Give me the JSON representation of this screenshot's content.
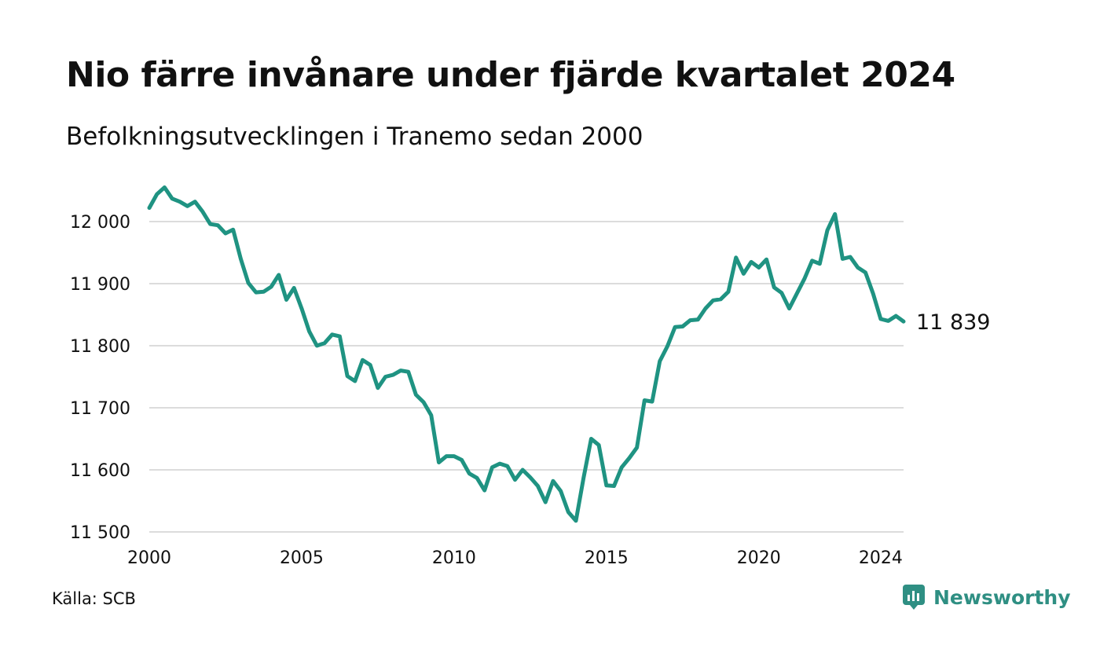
{
  "title": "Nio färre invånare under fjärde kvartalet 2024",
  "subtitle": "Befolkningsutvecklingen i Tranemo sedan 2000",
  "source": "Källa: SCB",
  "brand": {
    "name": "Newsworthy",
    "icon": "newsworthy-logo-icon",
    "color": "#2f8f83"
  },
  "chart_data": {
    "type": "line",
    "title": "Nio färre invånare under fjärde kvartalet 2024",
    "subtitle": "Befolkningsutvecklingen i Tranemo sedan 2000",
    "xlabel": "",
    "ylabel": "",
    "x_ticks": [
      "2000",
      "2005",
      "2010",
      "2015",
      "2020",
      "2024"
    ],
    "y_ticks": [
      "11 500",
      "11 600",
      "11 700",
      "11 800",
      "11 900",
      "12 000"
    ],
    "ylim": [
      11500,
      12040
    ],
    "xlim": [
      "2000-Q1",
      "2024-Q4"
    ],
    "grid": true,
    "line_color": "#1f9382",
    "end_label": "11 839",
    "series": [
      {
        "x": [
          "2000-Q1",
          "2000-Q2",
          "2000-Q3",
          "2000-Q4",
          "2001-Q1",
          "2001-Q2",
          "2001-Q3",
          "2001-Q4",
          "2002-Q1",
          "2002-Q2",
          "2002-Q3",
          "2002-Q4",
          "2003-Q1",
          "2003-Q2",
          "2003-Q3",
          "2003-Q4",
          "2004-Q1",
          "2004-Q2",
          "2004-Q3",
          "2004-Q4",
          "2005-Q1",
          "2005-Q2",
          "2005-Q3",
          "2005-Q4",
          "2006-Q1",
          "2006-Q2",
          "2006-Q3",
          "2006-Q4",
          "2007-Q1",
          "2007-Q2",
          "2007-Q3",
          "2007-Q4",
          "2008-Q1",
          "2008-Q2",
          "2008-Q3",
          "2008-Q4",
          "2009-Q1",
          "2009-Q2",
          "2009-Q3",
          "2009-Q4",
          "2010-Q1",
          "2010-Q2",
          "2010-Q3",
          "2010-Q4",
          "2011-Q1",
          "2011-Q2",
          "2011-Q3",
          "2011-Q4",
          "2012-Q1",
          "2012-Q2",
          "2012-Q3",
          "2012-Q4",
          "2013-Q1",
          "2013-Q2",
          "2013-Q3",
          "2013-Q4",
          "2014-Q1",
          "2014-Q2",
          "2014-Q3",
          "2014-Q4",
          "2015-Q1",
          "2015-Q2",
          "2015-Q3",
          "2015-Q4",
          "2016-Q1",
          "2016-Q2",
          "2016-Q3",
          "2016-Q4",
          "2017-Q1",
          "2017-Q2",
          "2017-Q3",
          "2017-Q4",
          "2018-Q1",
          "2018-Q2",
          "2018-Q3",
          "2018-Q4",
          "2019-Q1",
          "2019-Q2",
          "2019-Q3",
          "2019-Q4",
          "2020-Q1",
          "2020-Q2",
          "2020-Q3",
          "2020-Q4",
          "2021-Q1",
          "2021-Q2",
          "2021-Q3",
          "2021-Q4",
          "2022-Q1",
          "2022-Q2",
          "2022-Q3",
          "2022-Q4",
          "2023-Q1",
          "2023-Q2",
          "2023-Q3",
          "2023-Q4",
          "2024-Q1",
          "2024-Q2",
          "2024-Q3",
          "2024-Q4"
        ],
        "values": [
          12022,
          12044,
          12055,
          12037,
          12032,
          12025,
          12032,
          12016,
          11996,
          11994,
          11981,
          11987,
          11940,
          11901,
          11886,
          11887,
          11895,
          11914,
          11874,
          11893,
          11860,
          11823,
          11800,
          11804,
          11818,
          11815,
          11751,
          11743,
          11777,
          11769,
          11732,
          11750,
          11753,
          11760,
          11758,
          11721,
          11709,
          11688,
          11612,
          11622,
          11622,
          11616,
          11594,
          11587,
          11567,
          11604,
          11610,
          11606,
          11584,
          11600,
          11588,
          11574,
          11548,
          11582,
          11566,
          11532,
          11518,
          11587,
          11650,
          11640,
          11575,
          11574,
          11604,
          11619,
          11636,
          11712,
          11710,
          11775,
          11799,
          11830,
          11831,
          11841,
          11842,
          11860,
          11873,
          11875,
          11887,
          11942,
          11916,
          11935,
          11926,
          11939,
          11894,
          11885,
          11860,
          11884,
          11908,
          11937,
          11932,
          11986,
          12012,
          11940,
          11943,
          11926,
          11918,
          11884,
          11843,
          11840,
          11848,
          11839
        ]
      }
    ]
  }
}
